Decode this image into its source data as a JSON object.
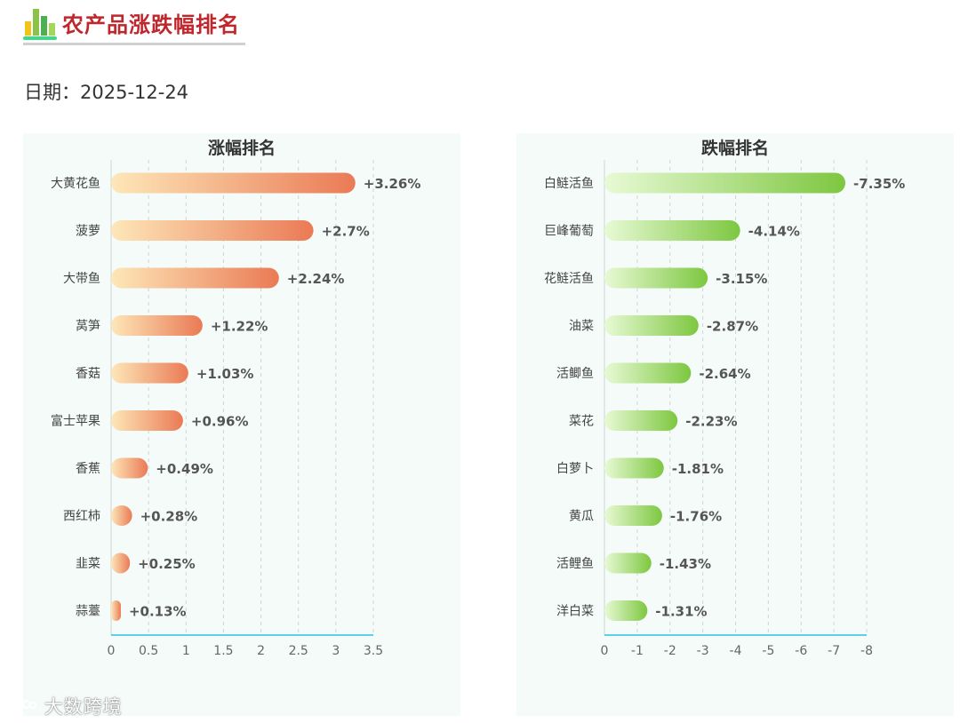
{
  "page": {
    "title": "农产品涨跌幅排名",
    "date_label": "日期：2025-12-24",
    "watermark": "大数跨境"
  },
  "chart_data": [
    {
      "type": "bar",
      "orientation": "horizontal",
      "title": "涨幅排名",
      "categories": [
        "大黄花鱼",
        "菠萝",
        "大带鱼",
        "莴笋",
        "香菇",
        "富士苹果",
        "香蕉",
        "西红柿",
        "韭菜",
        "蒜薹"
      ],
      "values": [
        3.26,
        2.7,
        2.24,
        1.22,
        1.03,
        0.96,
        0.49,
        0.28,
        0.25,
        0.13
      ],
      "value_labels": [
        "+3.26%",
        "+2.7%",
        "+2.24%",
        "+1.22%",
        "+1.03%",
        "+0.96%",
        "+0.49%",
        "+0.28%",
        "+0.25%",
        "+0.13%"
      ],
      "xlim": [
        0,
        3.5
      ],
      "x_ticks": [
        "0",
        "0.5",
        "1",
        "1.5",
        "2",
        "2.5",
        "3",
        "3.5"
      ],
      "grid": "vertical dashed",
      "colors": {
        "gradient_start": "#fde7b8",
        "gradient_end": "#ea7a55",
        "axis": "#29c1e6"
      }
    },
    {
      "type": "bar",
      "orientation": "horizontal",
      "title": "跌幅排名",
      "categories": [
        "白鲢活鱼",
        "巨峰葡萄",
        "花鲢活鱼",
        "油菜",
        "活鲫鱼",
        "菜花",
        "白萝卜",
        "黄瓜",
        "活鲤鱼",
        "洋白菜"
      ],
      "values": [
        -7.35,
        -4.14,
        -3.15,
        -2.87,
        -2.64,
        -2.23,
        -1.81,
        -1.76,
        -1.43,
        -1.31
      ],
      "value_labels": [
        "-7.35%",
        "-4.14%",
        "-3.15%",
        "-2.87%",
        "-2.64%",
        "-2.23%",
        "-1.81%",
        "-1.76%",
        "-1.43%",
        "-1.31%"
      ],
      "xlim": [
        0,
        -8
      ],
      "x_ticks": [
        "0",
        "-1",
        "-2",
        "-3",
        "-4",
        "-5",
        "-6",
        "-7",
        "-8"
      ],
      "grid": "vertical dashed",
      "colors": {
        "gradient_start": "#e8fad5",
        "gradient_end": "#7dc740",
        "axis": "#29c1e6"
      }
    }
  ]
}
